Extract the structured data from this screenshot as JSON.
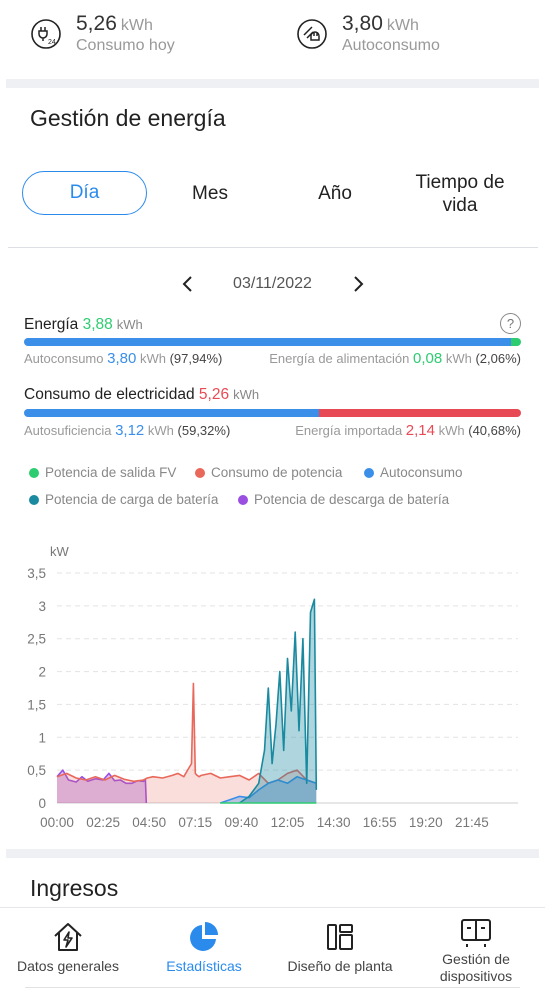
{
  "top_stats": [
    {
      "value": "5,26",
      "unit": "kWh",
      "label": "Consumo hoy",
      "icon": "consumption-24h-icon"
    },
    {
      "value": "3,80",
      "unit": "kWh",
      "label": "Autoconsumo",
      "icon": "self-consumption-icon"
    }
  ],
  "energy_management": {
    "title": "Gestión de energía",
    "tabs": [
      "Día",
      "Mes",
      "Año",
      "Tiempo de vida"
    ],
    "active_tab": "Día",
    "date": "03/11/2022",
    "energy": {
      "label": "Energía",
      "value": "3,88",
      "unit": "kWh",
      "help": "?",
      "self_label": "Autoconsumo",
      "self_value": "3,80",
      "self_unit": "kWh",
      "self_pct": "(97,94%)",
      "feed_label": "Energía de alimentación",
      "feed_value": "0,08",
      "feed_unit": "kWh",
      "feed_pct": "(2,06%)",
      "self_fraction": 0.9794
    },
    "consumption": {
      "label": "Consumo de electricidad",
      "value": "5,26",
      "unit": "kWh",
      "suff_label": "Autosuficiencia",
      "suff_value": "3,12",
      "suff_unit": "kWh",
      "suff_pct": "(59,32%)",
      "imp_label": "Energía importada",
      "imp_value": "2,14",
      "imp_unit": "kWh",
      "imp_pct": "(40,68%)",
      "suff_fraction": 0.5932
    },
    "legend": [
      {
        "label": "Potencia de salida FV",
        "color": "#2ecc71"
      },
      {
        "label": "Consumo de potencia",
        "color": "#e8685c"
      },
      {
        "label": "Autoconsumo",
        "color": "#3b8fe8"
      },
      {
        "label": "Potencia de carga de batería",
        "color": "#1a8aa0"
      },
      {
        "label": "Potencia de descarga de batería",
        "color": "#9a4fe0"
      }
    ]
  },
  "colors": {
    "accent": "#2b8bec",
    "green": "#2ecc71",
    "red": "#e84a55",
    "blue": "#3b8fe8"
  },
  "chart_data": {
    "type": "area",
    "ylabel": "kW",
    "ylim": [
      0,
      3.5
    ],
    "yticks": [
      "0",
      "0,5",
      "1",
      "1,5",
      "2",
      "2,5",
      "3",
      "3,5"
    ],
    "xticks": [
      "00:00",
      "02:25",
      "04:50",
      "07:15",
      "09:40",
      "12:05",
      "14:30",
      "16:55",
      "19:20",
      "21:45"
    ],
    "x_unit": "hours",
    "x_range": [
      0,
      24
    ],
    "grid": "horizontal dashed",
    "series": [
      {
        "name": "Potencia de descarga de batería",
        "color": "#9a4fe0",
        "x": [
          0,
          0.3,
          0.6,
          1.0,
          1.3,
          1.6,
          2.0,
          2.4,
          2.7,
          3.0,
          3.3,
          3.6,
          3.9,
          4.2,
          4.5,
          4.6,
          4.65
        ],
        "y": [
          0.4,
          0.5,
          0.35,
          0.32,
          0.4,
          0.33,
          0.37,
          0.35,
          0.45,
          0.34,
          0.35,
          0.3,
          0.3,
          0.34,
          0.33,
          0.35,
          0
        ]
      },
      {
        "name": "Consumo de potencia",
        "color": "#e8685c",
        "x": [
          0,
          0.5,
          1.0,
          1.5,
          2.0,
          2.5,
          3.0,
          3.5,
          4.0,
          4.5,
          4.7,
          5.0,
          5.5,
          6.0,
          6.3,
          6.6,
          6.8,
          7.0,
          7.1,
          7.2,
          7.3,
          7.4,
          7.5,
          8.0,
          8.5,
          9.0,
          9.5,
          10.0,
          10.5,
          11.0,
          11.5,
          12.0,
          12.5,
          13.0,
          13.5
        ],
        "y": [
          0.4,
          0.45,
          0.38,
          0.35,
          0.4,
          0.35,
          0.42,
          0.36,
          0.33,
          0.35,
          0.38,
          0.4,
          0.38,
          0.42,
          0.45,
          0.4,
          0.5,
          0.6,
          1.82,
          0.45,
          0.42,
          0.4,
          0.42,
          0.45,
          0.38,
          0.4,
          0.42,
          0.35,
          0.45,
          0.3,
          0.35,
          0.45,
          0.5,
          0.35,
          0.3
        ]
      },
      {
        "name": "Autoconsumo",
        "color": "#3b8fe8",
        "x": [
          8.5,
          9.0,
          9.5,
          10.0,
          10.5,
          11.0,
          11.5,
          12.0,
          12.5,
          13.0,
          13.5
        ],
        "y": [
          0,
          0.05,
          0.1,
          0.08,
          0.2,
          0.3,
          0.35,
          0.3,
          0.4,
          0.35,
          0.3
        ]
      },
      {
        "name": "Potencia de carga de batería",
        "color": "#1a8aa0",
        "x": [
          9.5,
          10.0,
          10.5,
          10.8,
          11.0,
          11.2,
          11.4,
          11.6,
          11.8,
          12.0,
          12.2,
          12.4,
          12.6,
          12.8,
          13.0,
          13.2,
          13.4,
          13.5
        ],
        "y": [
          0,
          0.1,
          0.3,
          0.8,
          1.75,
          0.6,
          1.2,
          2.0,
          0.8,
          2.2,
          1.4,
          2.6,
          1.1,
          2.5,
          0.3,
          2.9,
          3.1,
          0.2
        ]
      },
      {
        "name": "Potencia de salida FV",
        "color": "#2ecc71",
        "x": [
          8.5,
          13.5
        ],
        "y": [
          0,
          0
        ]
      }
    ]
  },
  "income": {
    "title": "Ingresos"
  },
  "bottom_nav": [
    {
      "label": "Datos generales",
      "icon": "house-lightning-icon",
      "active": false
    },
    {
      "label": "Estadísticas",
      "icon": "pie-chart-icon",
      "active": true
    },
    {
      "label": "Diseño de planta",
      "icon": "layout-icon",
      "active": false
    },
    {
      "label": "Gestión de dispositivos",
      "icon": "devices-icon",
      "active": false
    }
  ]
}
